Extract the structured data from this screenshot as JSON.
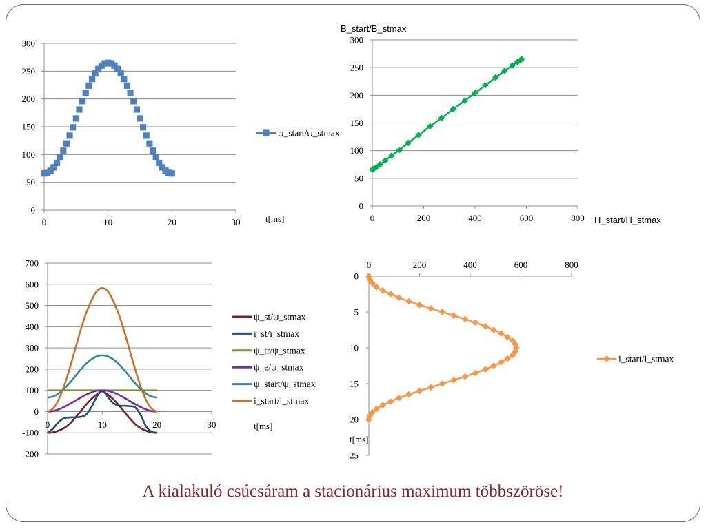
{
  "caption": "A kialakuló csúcsáram a stacionárius maximum többszöröse!",
  "chart_data": [
    {
      "type": "scatter",
      "title": "",
      "xlabel": "t[ms]",
      "ylabel": "",
      "xlim": [
        0,
        30
      ],
      "ylim": [
        0,
        300
      ],
      "xticks": [
        "0",
        "10",
        "20",
        "30"
      ],
      "yticks": [
        "0",
        "50",
        "100",
        "150",
        "200",
        "250",
        "300"
      ],
      "grid": "horizontal",
      "legend_position": "right",
      "series": [
        {
          "name": "ψ_start/ψ_stmax",
          "color": "#4f81bd",
          "marker": "square",
          "line": false,
          "x": [
            0,
            0.5,
            1,
            1.5,
            2,
            2.5,
            3,
            3.5,
            4,
            4.5,
            5,
            5.5,
            6,
            6.5,
            7,
            7.5,
            8,
            8.5,
            9,
            9.5,
            10,
            10.5,
            11,
            11.5,
            12,
            12.5,
            13,
            13.5,
            14,
            14.5,
            15,
            15.5,
            16,
            16.5,
            17,
            17.5,
            18,
            18.5,
            19,
            19.5,
            20
          ],
          "y": [
            66,
            67,
            71,
            77,
            85,
            95,
            107,
            120,
            134,
            149,
            165,
            181,
            196,
            211,
            224,
            236,
            246,
            254,
            260,
            264,
            265,
            264,
            260,
            254,
            246,
            236,
            224,
            211,
            196,
            181,
            165,
            149,
            134,
            120,
            107,
            95,
            85,
            77,
            71,
            67,
            66
          ]
        }
      ]
    },
    {
      "type": "line",
      "title": "",
      "xlabel": "H_start/H_stmax",
      "ylabel": "B_start/B_stmax",
      "xlim": [
        0,
        800
      ],
      "ylim": [
        0,
        300
      ],
      "xticks": [
        "0",
        "200",
        "400",
        "600",
        "800"
      ],
      "yticks": [
        "0",
        "50",
        "100",
        "150",
        "200",
        "250",
        "300"
      ],
      "grid": "horizontal",
      "series": [
        {
          "name": "B_start/B_stmax",
          "color": "#00b050",
          "marker": "diamond",
          "x": [
            0,
            5,
            15,
            30,
            50,
            75,
            105,
            140,
            180,
            225,
            270,
            315,
            360,
            400,
            440,
            480,
            515,
            545,
            565,
            578,
            582
          ],
          "y": [
            66,
            67,
            70,
            75,
            82,
            91,
            101,
            114,
            128,
            144,
            159,
            175,
            190,
            204,
            218,
            232,
            244,
            254,
            260,
            264,
            265
          ]
        }
      ]
    },
    {
      "type": "line",
      "title": "",
      "xlabel": "t[ms]",
      "ylabel": "",
      "xlim": [
        0,
        30
      ],
      "ylim": [
        -200,
        700
      ],
      "xticks": [
        "0",
        "10",
        "20",
        "30"
      ],
      "yticks": [
        "-200",
        "-100",
        "0",
        "100",
        "200",
        "300",
        "400",
        "500",
        "600",
        "700"
      ],
      "grid": "horizontal",
      "legend_position": "right",
      "series": [
        {
          "name": "ψ_st/ψ_stmax",
          "color": "#7b1e2e",
          "x": [
            0,
            1,
            2,
            3,
            4,
            5,
            6,
            7,
            8,
            9,
            10,
            11,
            12,
            13,
            14,
            15,
            16,
            17,
            18,
            19,
            20
          ],
          "y": [
            -100,
            -98,
            -90,
            -78,
            -59,
            -31,
            0,
            31,
            59,
            81,
            95,
            81,
            59,
            31,
            0,
            -31,
            -59,
            -78,
            -90,
            -98,
            -100
          ]
        },
        {
          "name": "i_st/i_stmax",
          "color": "#1f4e79",
          "x": [
            0,
            1,
            2,
            3,
            4,
            5,
            6,
            7,
            8,
            9,
            10,
            11,
            12,
            13,
            14,
            15,
            16,
            17,
            18,
            19,
            20
          ],
          "y": [
            -100,
            -80,
            -50,
            -32,
            -28,
            -27,
            -25,
            -15,
            20,
            70,
            98,
            70,
            40,
            28,
            27,
            25,
            20,
            -15,
            -70,
            -95,
            -100
          ]
        },
        {
          "name": "ψ_tr/ψ_stmax",
          "color": "#77933c",
          "x": [
            0,
            20
          ],
          "y": [
            100,
            100
          ]
        },
        {
          "name": "ψ_e/ψ_stmax",
          "color": "#7030a0",
          "x": [
            0,
            1,
            2,
            3,
            4,
            5,
            6,
            7,
            8,
            9,
            10,
            11,
            12,
            13,
            14,
            15,
            16,
            17,
            18,
            19,
            20
          ],
          "y": [
            0,
            2,
            10,
            21,
            35,
            50,
            65,
            79,
            90,
            98,
            100,
            98,
            90,
            79,
            65,
            50,
            35,
            21,
            10,
            2,
            0
          ]
        },
        {
          "name": "ψ_start/ψ_stmax",
          "color": "#31859c",
          "x": [
            0,
            1,
            2,
            3,
            4,
            5,
            6,
            7,
            8,
            9,
            10,
            11,
            12,
            13,
            14,
            15,
            16,
            17,
            18,
            19,
            20
          ],
          "y": [
            66,
            71,
            85,
            107,
            134,
            165,
            196,
            224,
            246,
            260,
            265,
            260,
            246,
            224,
            196,
            165,
            134,
            107,
            85,
            71,
            66
          ]
        },
        {
          "name": "i_start/i_stmax",
          "color": "#c8732b",
          "x": [
            0,
            1,
            2,
            3,
            4,
            5,
            6,
            7,
            8,
            9,
            10,
            11,
            12,
            13,
            14,
            15,
            16,
            17,
            18,
            19,
            20
          ],
          "y": [
            0,
            14,
            55,
            119,
            200,
            290,
            380,
            460,
            522,
            568,
            582,
            568,
            522,
            460,
            380,
            290,
            200,
            119,
            55,
            14,
            0
          ]
        }
      ]
    },
    {
      "type": "line",
      "title": "",
      "xlabel": "",
      "ylabel": "t[ms]",
      "xlim": [
        0,
        800
      ],
      "ylim": [
        0,
        25
      ],
      "xticks": [
        "0",
        "200",
        "400",
        "600",
        "800"
      ],
      "yticks": [
        "0",
        "5",
        "10",
        "15",
        "20",
        "25"
      ],
      "y_inverted": true,
      "x_axis_position": "top",
      "grid": "none",
      "legend_position": "right",
      "series": [
        {
          "name": "i_start/i_stmax",
          "color": "#f79646",
          "marker": "diamond",
          "x": [
            0,
            4,
            14,
            30,
            55,
            86,
            119,
            158,
            200,
            245,
            290,
            335,
            380,
            421,
            460,
            493,
            522,
            547,
            568,
            578,
            582,
            578,
            568,
            547,
            522,
            493,
            460,
            421,
            380,
            335,
            290,
            245,
            200,
            158,
            119,
            86,
            55,
            30,
            14,
            4,
            0
          ],
          "y": [
            0,
            0.5,
            1,
            1.5,
            2,
            2.5,
            3,
            3.5,
            4,
            4.5,
            5,
            5.5,
            6,
            6.5,
            7,
            7.5,
            8,
            8.5,
            9,
            9.5,
            10,
            10.5,
            11,
            11.5,
            12,
            12.5,
            13,
            13.5,
            14,
            14.5,
            15,
            15.5,
            16,
            16.5,
            17,
            17.5,
            18,
            18.5,
            19,
            19.5,
            20
          ]
        }
      ]
    }
  ]
}
